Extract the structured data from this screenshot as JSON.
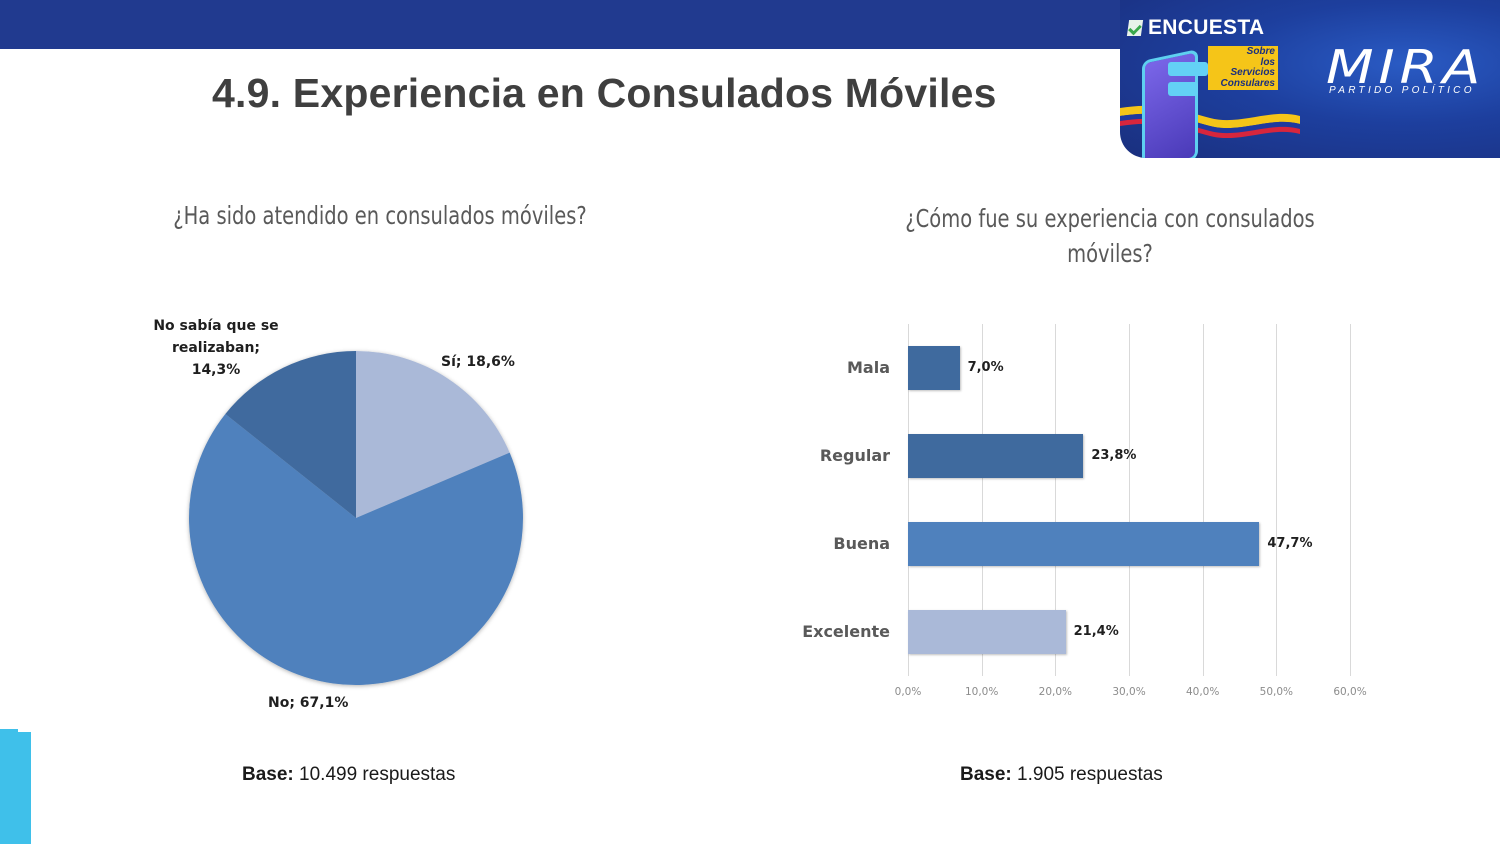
{
  "header": {
    "title": "4.9. Experiencia en Consulados Móviles",
    "brand": {
      "survey_label": "ENCUESTA",
      "survey_tag_lines": [
        "Sobre",
        "los",
        "Servicios",
        "Consulares"
      ],
      "logo_text": "MIRA",
      "logo_subtitle": "PARTIDO POLÍTICO",
      "icons": [
        "check-icon",
        "phone-illustration",
        "colombia-flag-ribbon"
      ]
    },
    "colors": {
      "band": "#213a8f",
      "accent_cyan": "#3fc0ea",
      "tag_yellow": "#f5c518"
    }
  },
  "left": {
    "question": "¿Ha sido atendido en consulados móviles?",
    "base_label": "Base:",
    "base_value": "10.499 respuestas",
    "labels": {
      "si": "Sí; 18,6%",
      "no": "No; 67,1%",
      "nosabia_line1": "No sabía que se",
      "nosabia_line2": "realizaban;",
      "nosabia_line3": "14,3%"
    }
  },
  "right": {
    "question_line1": "¿Cómo fue su experiencia con consulados",
    "question_line2": "móviles?",
    "base_label": "Base:",
    "base_value": "1.905 respuestas",
    "categories": [
      "Mala",
      "Regular",
      "Buena",
      "Excelente"
    ],
    "value_labels": [
      "7,0%",
      "23,8%",
      "47,7%",
      "21,4%"
    ],
    "ticks": [
      "0,0%",
      "10,0%",
      "20,0%",
      "30,0%",
      "40,0%",
      "50,0%",
      "60,0%"
    ]
  },
  "chart_data": [
    {
      "type": "pie",
      "title": "¿Ha sido atendido en consulados móviles?",
      "categories": [
        "Sí",
        "No",
        "No sabía que se realizaban"
      ],
      "values": [
        18.6,
        67.1,
        14.3
      ],
      "unit": "%",
      "colors": [
        "#aab9d8",
        "#4f81bd",
        "#3f6a9e"
      ],
      "start_angle": "12 o'clock, clockwise",
      "note": "Base: 10.499 respuestas"
    },
    {
      "type": "bar",
      "orientation": "horizontal",
      "title": "¿Cómo fue su experiencia con consulados móviles?",
      "categories": [
        "Mala",
        "Regular",
        "Buena",
        "Excelente"
      ],
      "values": [
        7.0,
        23.8,
        47.7,
        21.4
      ],
      "unit": "%",
      "colors": [
        "#3f6a9e",
        "#3f6a9e",
        "#4f81bd",
        "#aab9d8"
      ],
      "xlabel": "",
      "ylabel": "",
      "xlim": [
        0,
        60
      ],
      "xticks": [
        "0,0%",
        "10,0%",
        "20,0%",
        "30,0%",
        "40,0%",
        "50,0%",
        "60,0%"
      ],
      "grid": "vertical gridlines",
      "legend": "none",
      "note": "Base: 1.905 respuestas"
    }
  ]
}
